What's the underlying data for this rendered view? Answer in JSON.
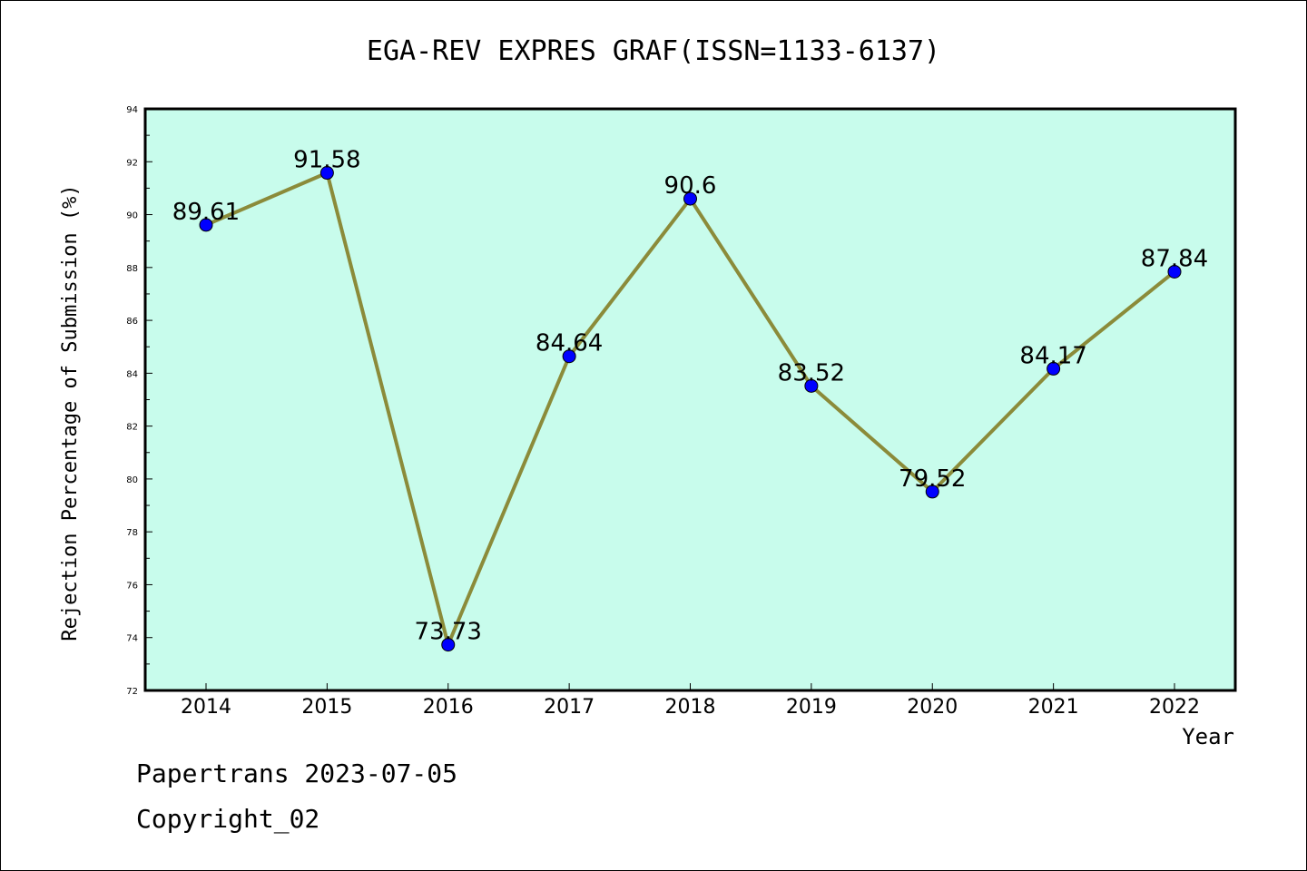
{
  "chart_data": {
    "type": "line",
    "title": "EGA-REV EXPRES GRAF(ISSN=1133-6137)",
    "xlabel": "Year",
    "ylabel": "Rejection Percentage of Submission (%)",
    "categories": [
      "2014",
      "2015",
      "2016",
      "2017",
      "2018",
      "2019",
      "2020",
      "2021",
      "2022"
    ],
    "series": [
      {
        "values": [
          89.61,
          91.58,
          73.73,
          84.64,
          90.6,
          83.52,
          79.52,
          84.17,
          87.84
        ],
        "labels": [
          "89.61",
          "91.58",
          "73.73",
          "84.64",
          "90.6",
          "83.52",
          "79.52",
          "84.17",
          "87.84"
        ]
      }
    ],
    "ylim": [
      72,
      94
    ],
    "yticks": [
      72,
      74,
      76,
      78,
      80,
      82,
      84,
      86,
      88,
      90,
      92,
      94
    ],
    "grid": false,
    "colors": {
      "plot_background": "#c8fcec",
      "line": "#8b8b3a",
      "marker": "#0000ff"
    }
  },
  "footer": {
    "line1": "Papertrans 2023-07-05",
    "line2": "Copyright_02"
  }
}
